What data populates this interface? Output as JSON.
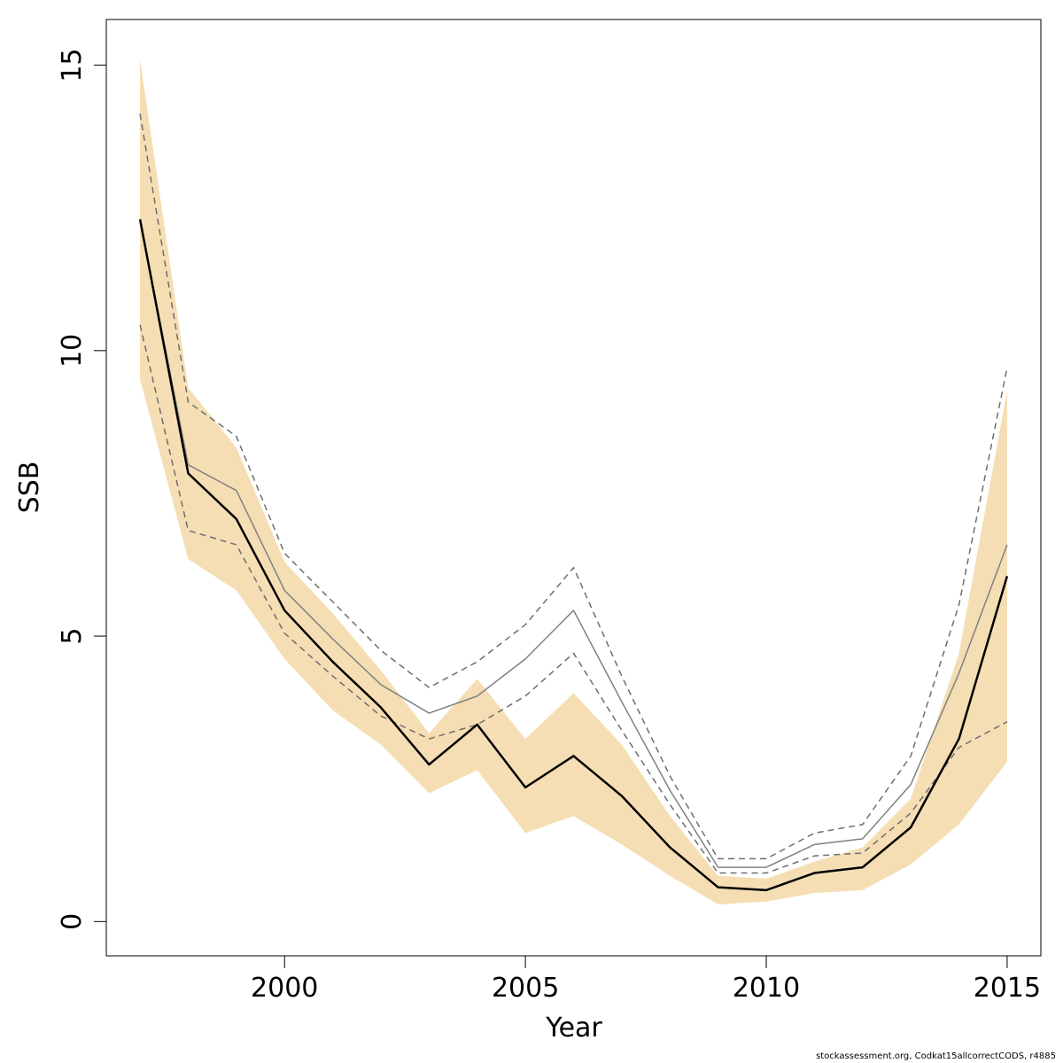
{
  "chart_data": {
    "type": "line",
    "title": "",
    "xlabel": "Year",
    "ylabel": "SSB",
    "xlim": [
      1996.3,
      2015.7
    ],
    "ylim": [
      -0.6,
      15.8
    ],
    "x_ticks": [
      2000,
      2005,
      2010,
      2015
    ],
    "y_ticks": [
      0,
      5,
      10,
      15
    ],
    "grid": false,
    "legend": "none",
    "band_color": "#F5DEB3",
    "x": [
      1997,
      1998,
      1999,
      2000,
      2001,
      2002,
      2003,
      2004,
      2005,
      2006,
      2007,
      2008,
      2009,
      2010,
      2011,
      2012,
      2013,
      2014,
      2015
    ],
    "series": [
      {
        "style": "confidence-band",
        "color": "#F5DEB3",
        "lower": [
          9.5,
          6.35,
          5.8,
          4.6,
          3.7,
          3.1,
          2.25,
          2.65,
          1.55,
          1.85,
          1.35,
          0.8,
          0.3,
          0.35,
          0.5,
          0.55,
          1.0,
          1.7,
          2.8
        ],
        "upper": [
          15.1,
          9.35,
          8.3,
          6.3,
          5.4,
          4.4,
          3.3,
          4.25,
          3.2,
          4.0,
          3.1,
          1.85,
          0.8,
          0.75,
          1.05,
          1.3,
          2.15,
          4.7,
          9.3
        ]
      },
      {
        "style": "solid",
        "color": "#000000",
        "width": 2.5,
        "values": [
          12.3,
          7.85,
          7.05,
          5.45,
          4.55,
          3.75,
          2.75,
          3.45,
          2.35,
          2.9,
          2.2,
          1.3,
          0.6,
          0.55,
          0.85,
          0.95,
          1.65,
          3.2,
          6.05
        ]
      },
      {
        "style": "solid",
        "color": "#808080",
        "width": 1.5,
        "values": [
          12.3,
          8.0,
          7.55,
          5.8,
          4.95,
          4.15,
          3.65,
          3.95,
          4.6,
          5.45,
          3.85,
          2.3,
          0.95,
          0.95,
          1.35,
          1.45,
          2.4,
          4.35,
          6.6
        ]
      },
      {
        "style": "dashed",
        "color": "#6E6E6E",
        "width": 1.5,
        "values": [
          14.15,
          9.1,
          8.5,
          6.45,
          5.6,
          4.75,
          4.1,
          4.55,
          5.2,
          6.2,
          4.3,
          2.55,
          1.1,
          1.1,
          1.55,
          1.7,
          2.9,
          5.55,
          9.7
        ]
      },
      {
        "style": "dashed",
        "color": "#6E6E6E",
        "width": 1.5,
        "values": [
          10.45,
          6.85,
          6.6,
          5.05,
          4.3,
          3.6,
          3.2,
          3.45,
          3.95,
          4.7,
          3.35,
          2.05,
          0.85,
          0.85,
          1.15,
          1.2,
          1.9,
          3.05,
          3.5
        ]
      }
    ]
  },
  "footer": {
    "credit": "stockassessment.org, Codkat15allcorrectCODS, r4885"
  }
}
